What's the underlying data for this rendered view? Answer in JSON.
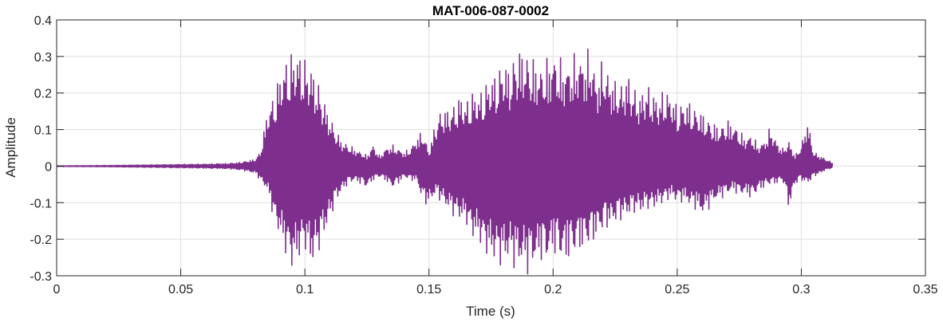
{
  "chart_data": {
    "type": "line",
    "title": "MAT-006-087-0002",
    "xlabel": "Time (s)",
    "ylabel": "Amplitude",
    "xlim": [
      0,
      0.35
    ],
    "ylim": [
      -0.3,
      0.4
    ],
    "xticks": [
      0,
      0.05,
      0.1,
      0.15,
      0.2,
      0.25,
      0.3,
      0.35
    ],
    "xtick_labels": [
      "0",
      "0.05",
      "0.1",
      "0.15",
      "0.2",
      "0.25",
      "0.3",
      "0.35"
    ],
    "yticks": [
      -0.3,
      -0.2,
      -0.1,
      0,
      0.1,
      0.2,
      0.3,
      0.4
    ],
    "ytick_labels": [
      "-0.3",
      "-0.2",
      "-0.1",
      "0",
      "0.1",
      "0.2",
      "0.3",
      "0.4"
    ],
    "grid": true,
    "line_color": "#7E2F8E",
    "series": [
      {
        "x": [
          0,
          0.02,
          0.04,
          0.06,
          0.07,
          0.075,
          0.08,
          0.082,
          0.085,
          0.0875,
          0.09,
          0.0925,
          0.095,
          0.0975,
          0.1,
          0.1025,
          0.105,
          0.1075,
          0.11,
          0.1125,
          0.115,
          0.1175,
          0.12,
          0.1225,
          0.125,
          0.1275,
          0.13,
          0.1325,
          0.135,
          0.1375,
          0.14,
          0.1425,
          0.145,
          0.1475,
          0.15,
          0.1525,
          0.155,
          0.1575,
          0.16,
          0.1625,
          0.165,
          0.1675,
          0.17,
          0.1725,
          0.175,
          0.1775,
          0.18,
          0.1825,
          0.185,
          0.1875,
          0.19,
          0.1925,
          0.195,
          0.1975,
          0.2,
          0.2025,
          0.205,
          0.2075,
          0.21,
          0.2125,
          0.215,
          0.2175,
          0.22,
          0.2225,
          0.225,
          0.2275,
          0.23,
          0.2325,
          0.235,
          0.2375,
          0.24,
          0.2425,
          0.245,
          0.2475,
          0.25,
          0.2525,
          0.255,
          0.2575,
          0.26,
          0.2625,
          0.265,
          0.2675,
          0.27,
          0.2725,
          0.275,
          0.2775,
          0.28,
          0.2825,
          0.285,
          0.2875,
          0.29,
          0.2925,
          0.295,
          0.2975,
          0.3,
          0.3025,
          0.305,
          0.3075,
          0.31,
          0.3125
        ],
        "upper": [
          0.001,
          0.002,
          0.004,
          0.006,
          0.008,
          0.012,
          0.02,
          0.04,
          0.16,
          0.2,
          0.26,
          0.3,
          0.32,
          0.32,
          0.3,
          0.28,
          0.24,
          0.19,
          0.14,
          0.1,
          0.07,
          0.06,
          0.05,
          0.04,
          0.03,
          0.06,
          0.03,
          0.05,
          0.06,
          0.05,
          0.04,
          0.05,
          0.08,
          0.1,
          0.04,
          0.12,
          0.16,
          0.16,
          0.17,
          0.2,
          0.18,
          0.21,
          0.2,
          0.23,
          0.25,
          0.26,
          0.3,
          0.27,
          0.32,
          0.33,
          0.31,
          0.3,
          0.28,
          0.3,
          0.32,
          0.3,
          0.29,
          0.3,
          0.32,
          0.31,
          0.33,
          0.25,
          0.3,
          0.26,
          0.24,
          0.23,
          0.26,
          0.22,
          0.2,
          0.23,
          0.21,
          0.19,
          0.22,
          0.2,
          0.17,
          0.18,
          0.18,
          0.16,
          0.15,
          0.13,
          0.12,
          0.11,
          0.13,
          0.12,
          0.1,
          0.08,
          0.09,
          0.06,
          0.07,
          0.11,
          0.07,
          0.05,
          0.07,
          0.03,
          0.06,
          0.13,
          0.04,
          0.03,
          0.02,
          0.01
        ],
        "lower": [
          -0.001,
          -0.002,
          -0.004,
          -0.006,
          -0.008,
          -0.012,
          -0.02,
          -0.04,
          -0.07,
          -0.15,
          -0.2,
          -0.25,
          -0.29,
          -0.26,
          -0.23,
          -0.28,
          -0.25,
          -0.2,
          -0.15,
          -0.1,
          -0.07,
          -0.05,
          -0.04,
          -0.05,
          -0.06,
          -0.04,
          -0.03,
          -0.04,
          -0.06,
          -0.05,
          -0.03,
          -0.04,
          -0.04,
          -0.1,
          -0.11,
          -0.08,
          -0.1,
          -0.12,
          -0.14,
          -0.15,
          -0.16,
          -0.2,
          -0.21,
          -0.24,
          -0.26,
          -0.27,
          -0.28,
          -0.26,
          -0.29,
          -0.28,
          -0.3,
          -0.28,
          -0.26,
          -0.27,
          -0.24,
          -0.26,
          -0.27,
          -0.25,
          -0.24,
          -0.23,
          -0.22,
          -0.2,
          -0.18,
          -0.17,
          -0.16,
          -0.15,
          -0.14,
          -0.13,
          -0.13,
          -0.12,
          -0.12,
          -0.11,
          -0.1,
          -0.09,
          -0.1,
          -0.1,
          -0.11,
          -0.12,
          -0.14,
          -0.12,
          -0.1,
          -0.09,
          -0.08,
          -0.07,
          -0.08,
          -0.08,
          -0.09,
          -0.07,
          -0.06,
          -0.05,
          -0.05,
          -0.04,
          -0.12,
          -0.05,
          -0.04,
          -0.05,
          -0.03,
          -0.02,
          -0.01,
          -0.005
        ]
      }
    ]
  }
}
